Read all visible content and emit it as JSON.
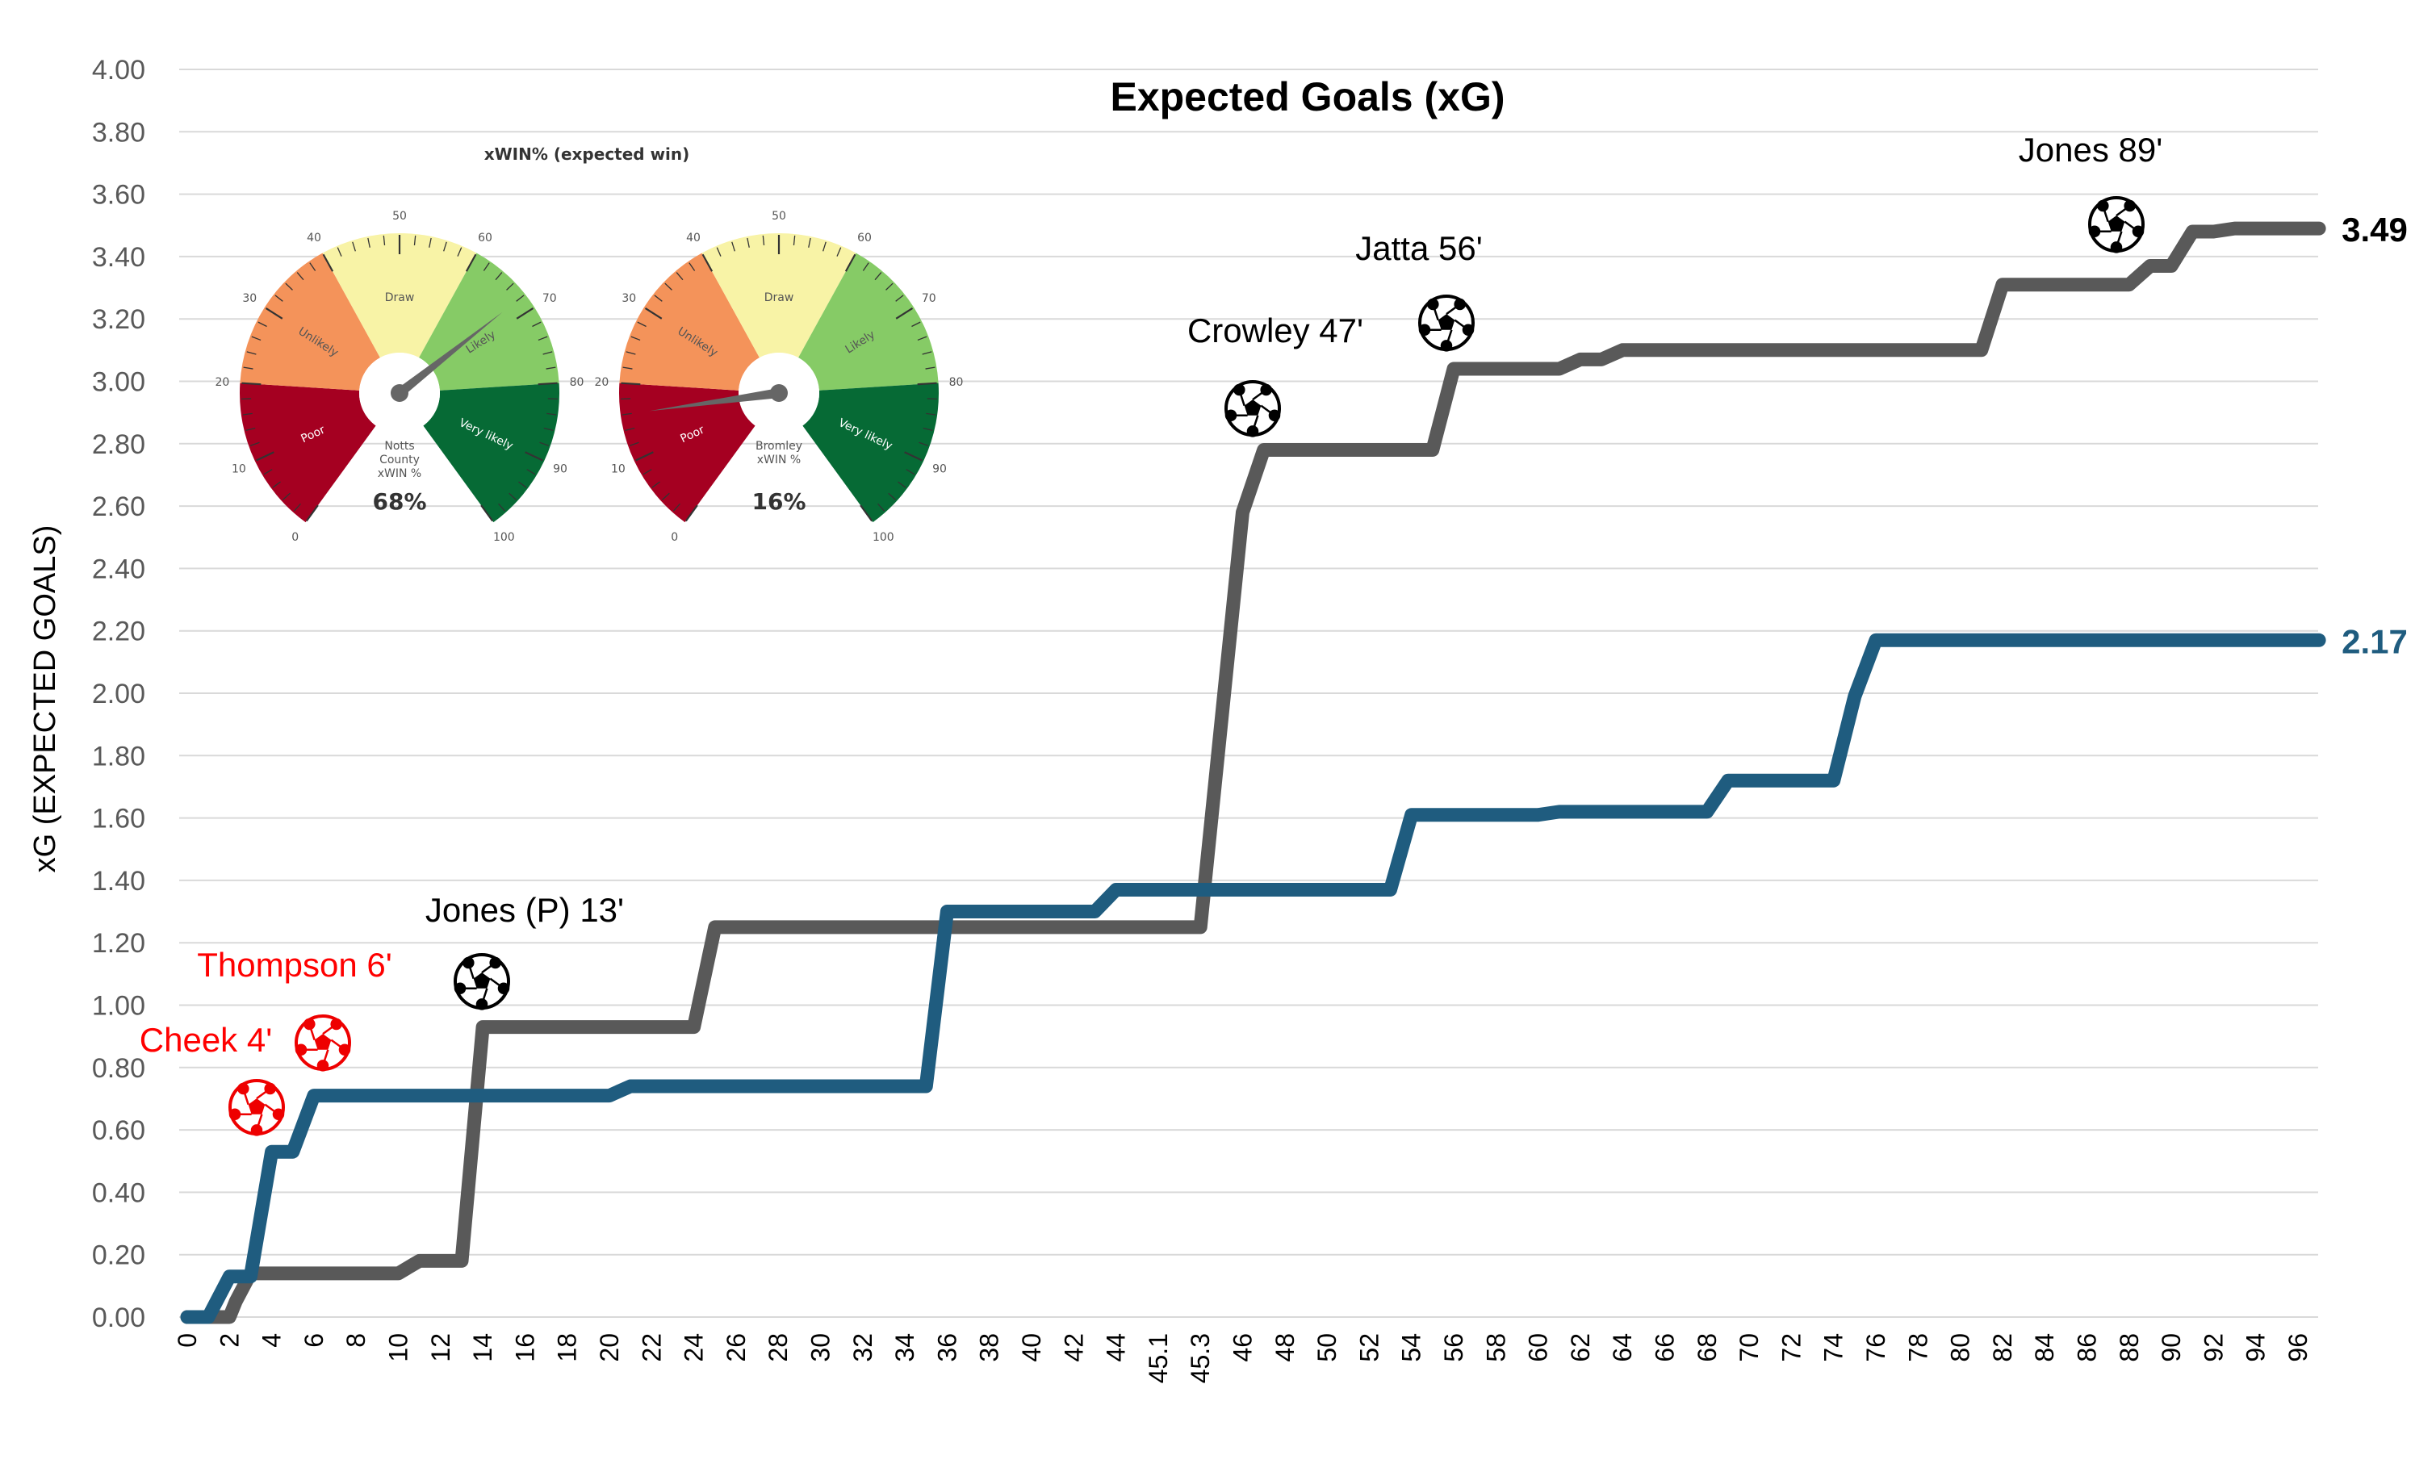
{
  "chart_data": {
    "type": "line",
    "title": "Expected Goals (xG)",
    "ylabel": "xG (EXPECTED GOALS)",
    "xlabel": "",
    "ylim": [
      0,
      4.0
    ],
    "yticks": [
      "0.00",
      "0.20",
      "0.40",
      "0.60",
      "0.80",
      "1.00",
      "1.20",
      "1.40",
      "1.60",
      "1.80",
      "2.00",
      "2.20",
      "2.40",
      "2.60",
      "2.80",
      "3.00",
      "3.20",
      "3.40",
      "3.60",
      "3.80",
      "4.00"
    ],
    "categories": [
      "0",
      "2",
      "4",
      "6",
      "8",
      "10",
      "12",
      "14",
      "16",
      "18",
      "20",
      "22",
      "24",
      "26",
      "28",
      "30",
      "32",
      "34",
      "36",
      "38",
      "40",
      "42",
      "44",
      "45.1",
      "45.3",
      "46",
      "48",
      "50",
      "52",
      "54",
      "56",
      "58",
      "60",
      "62",
      "64",
      "66",
      "68",
      "70",
      "72",
      "74",
      "76",
      "78",
      "80",
      "82",
      "84",
      "86",
      "88",
      "90",
      "92",
      "94",
      "96"
    ],
    "grid": true,
    "series": [
      {
        "color": "#595959",
        "end_label": "3.49",
        "points": [
          [
            0,
            0
          ],
          [
            2,
            0
          ],
          [
            2.3,
            0.05
          ],
          [
            3,
            0.14
          ],
          [
            10,
            0.14
          ],
          [
            11,
            0.18
          ],
          [
            13,
            0.18
          ],
          [
            14,
            0.93
          ],
          [
            24,
            0.93
          ],
          [
            25,
            1.25
          ],
          [
            45.3,
            1.25
          ],
          [
            46,
            2.58
          ],
          [
            47,
            2.78
          ],
          [
            55,
            2.78
          ],
          [
            56,
            3.04
          ],
          [
            61,
            3.04
          ],
          [
            62,
            3.07
          ],
          [
            63,
            3.07
          ],
          [
            64,
            3.1
          ],
          [
            81,
            3.1
          ],
          [
            82,
            3.31
          ],
          [
            88,
            3.31
          ],
          [
            89,
            3.37
          ],
          [
            90,
            3.37
          ],
          [
            91,
            3.48
          ],
          [
            92,
            3.48
          ],
          [
            93,
            3.49
          ],
          [
            97,
            3.49
          ]
        ]
      },
      {
        "color": "#1f5c7f",
        "end_label": "2.17",
        "points": [
          [
            0,
            0
          ],
          [
            1,
            0
          ],
          [
            2,
            0.13
          ],
          [
            3,
            0.13
          ],
          [
            4,
            0.53
          ],
          [
            5,
            0.53
          ],
          [
            6,
            0.71
          ],
          [
            20,
            0.71
          ],
          [
            21,
            0.74
          ],
          [
            35,
            0.74
          ],
          [
            36,
            1.3
          ],
          [
            43,
            1.3
          ],
          [
            44,
            1.37
          ],
          [
            53,
            1.37
          ],
          [
            54,
            1.61
          ],
          [
            60,
            1.61
          ],
          [
            61,
            1.62
          ],
          [
            68,
            1.62
          ],
          [
            69,
            1.72
          ],
          [
            74,
            1.72
          ],
          [
            75,
            1.99
          ],
          [
            76,
            2.17
          ],
          [
            97,
            2.17
          ]
        ]
      }
    ],
    "annotations": [
      {
        "label": "Jones (P) 13'",
        "x": 14,
        "y": 0.93,
        "color": "#000000",
        "team": "notts"
      },
      {
        "label": "Crowley 47'",
        "x": 47,
        "y": 2.78,
        "color": "#000000",
        "team": "notts"
      },
      {
        "label": "Jatta 56'",
        "x": 56,
        "y": 3.04,
        "color": "#000000",
        "team": "notts"
      },
      {
        "label": "Jones 89'",
        "x": 89,
        "y": 3.49,
        "color": "#000000",
        "team": "notts"
      },
      {
        "label": "Cheek 4'",
        "x": 4,
        "y": 0.6,
        "color": "#ff0000",
        "team": "bromley"
      },
      {
        "label": "Thompson 6'",
        "x": 6,
        "y": 0.85,
        "color": "#ff0000",
        "team": "bromley"
      }
    ]
  },
  "gauges": {
    "title": "xWIN% (expected win)",
    "scale_numbers": [
      "0",
      "10",
      "20",
      "30",
      "40",
      "50",
      "60",
      "70",
      "80",
      "90",
      "100"
    ],
    "zones": [
      {
        "label": "Poor",
        "color": "#a50021"
      },
      {
        "label": "Unlikely",
        "color": "#f4935a"
      },
      {
        "label": "Draw",
        "color": "#f8f3a6"
      },
      {
        "label": "Likely",
        "color": "#86cb66"
      },
      {
        "label": "Very likely",
        "color": "#066a35"
      }
    ],
    "items": [
      {
        "team_line1": "Notts",
        "team_line2": "County",
        "metric": "xWIN %",
        "value_label": "68%",
        "value": 68
      },
      {
        "team_line1": "Bromley",
        "team_line2": "",
        "metric": "xWIN %",
        "value_label": "16%",
        "value": 16
      }
    ]
  }
}
